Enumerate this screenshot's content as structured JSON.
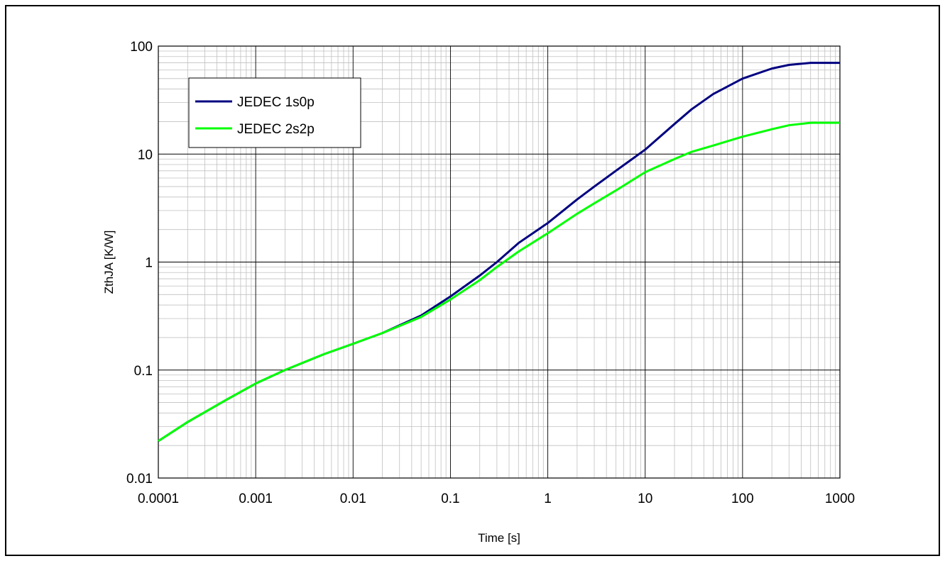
{
  "chart_data": {
    "type": "line",
    "xlabel": "Time [s]",
    "ylabel": "ZthJA [K/W]",
    "x_scale": "log",
    "y_scale": "log",
    "xlim": [
      0.0001,
      1000
    ],
    "ylim": [
      0.01,
      100
    ],
    "x_ticks": [
      "0.0001",
      "0.001",
      "0.01",
      "0.1",
      "1",
      "10",
      "100",
      "1000"
    ],
    "y_ticks": [
      "0.01",
      "0.1",
      "1",
      "10",
      "100"
    ],
    "grid": true,
    "legend_position": "top-left",
    "series": [
      {
        "name": "JEDEC 1s0p",
        "color": "#000080",
        "x": [
          0.0001,
          0.0002,
          0.0005,
          0.001,
          0.002,
          0.005,
          0.01,
          0.02,
          0.05,
          0.1,
          0.2,
          0.3,
          0.5,
          1,
          2,
          3,
          5,
          10,
          20,
          30,
          50,
          100,
          200,
          300,
          500,
          1000
        ],
        "y": [
          0.022,
          0.033,
          0.053,
          0.075,
          0.1,
          0.14,
          0.175,
          0.22,
          0.32,
          0.48,
          0.75,
          1.0,
          1.5,
          2.3,
          3.8,
          5.0,
          7.0,
          11,
          19,
          26,
          36,
          50,
          62,
          67,
          70,
          70
        ]
      },
      {
        "name": "JEDEC 2s2p",
        "color": "#00ff00",
        "x": [
          0.0001,
          0.0002,
          0.0005,
          0.001,
          0.002,
          0.005,
          0.01,
          0.02,
          0.05,
          0.1,
          0.2,
          0.3,
          0.5,
          1,
          2,
          3,
          5,
          10,
          20,
          30,
          50,
          100,
          200,
          300,
          500,
          1000
        ],
        "y": [
          0.022,
          0.033,
          0.053,
          0.075,
          0.1,
          0.14,
          0.175,
          0.22,
          0.31,
          0.45,
          0.68,
          0.9,
          1.25,
          1.85,
          2.8,
          3.5,
          4.6,
          6.8,
          9.0,
          10.5,
          12.0,
          14.5,
          17,
          18.5,
          19.5,
          19.5
        ]
      }
    ]
  }
}
